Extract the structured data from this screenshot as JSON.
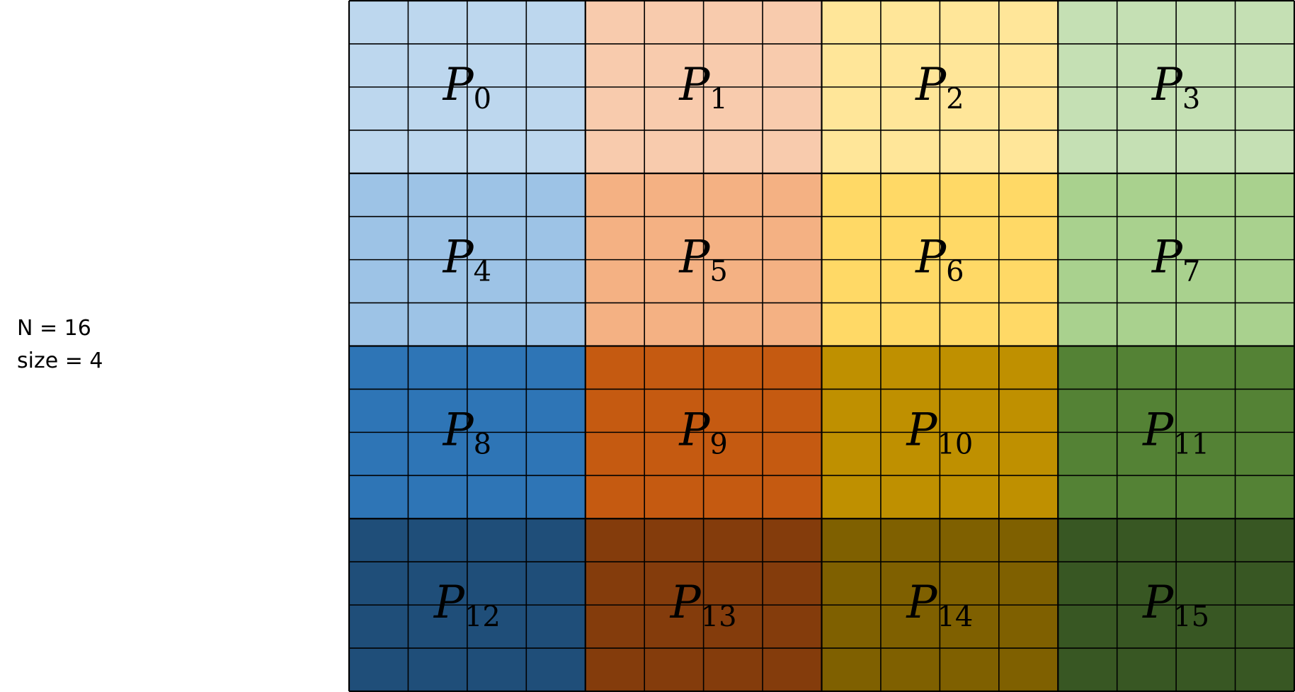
{
  "params": {
    "n_text": "N = 16",
    "size_text": "size = 4"
  },
  "grid": {
    "n": 16,
    "block": 4
  },
  "processes": [
    {
      "letter": "P",
      "sub": "0",
      "color": "#BDD7EE"
    },
    {
      "letter": "P",
      "sub": "1",
      "color": "#F8CBAD"
    },
    {
      "letter": "P",
      "sub": "2",
      "color": "#FFE699"
    },
    {
      "letter": "P",
      "sub": "3",
      "color": "#C5E0B4"
    },
    {
      "letter": "P",
      "sub": "4",
      "color": "#9DC3E6"
    },
    {
      "letter": "P",
      "sub": "5",
      "color": "#F4B183"
    },
    {
      "letter": "P",
      "sub": "6",
      "color": "#FFD966"
    },
    {
      "letter": "P",
      "sub": "7",
      "color": "#A9D18E"
    },
    {
      "letter": "P",
      "sub": "8",
      "color": "#2E75B6"
    },
    {
      "letter": "P",
      "sub": "9",
      "color": "#C55A11"
    },
    {
      "letter": "P",
      "sub": "10",
      "color": "#BF9000"
    },
    {
      "letter": "P",
      "sub": "11",
      "color": "#548235"
    },
    {
      "letter": "P",
      "sub": "12",
      "color": "#1F4E79"
    },
    {
      "letter": "P",
      "sub": "13",
      "color": "#843C0C"
    },
    {
      "letter": "P",
      "sub": "14",
      "color": "#7F6000"
    },
    {
      "letter": "P",
      "sub": "15",
      "color": "#385723"
    }
  ],
  "line_color": "#000000"
}
